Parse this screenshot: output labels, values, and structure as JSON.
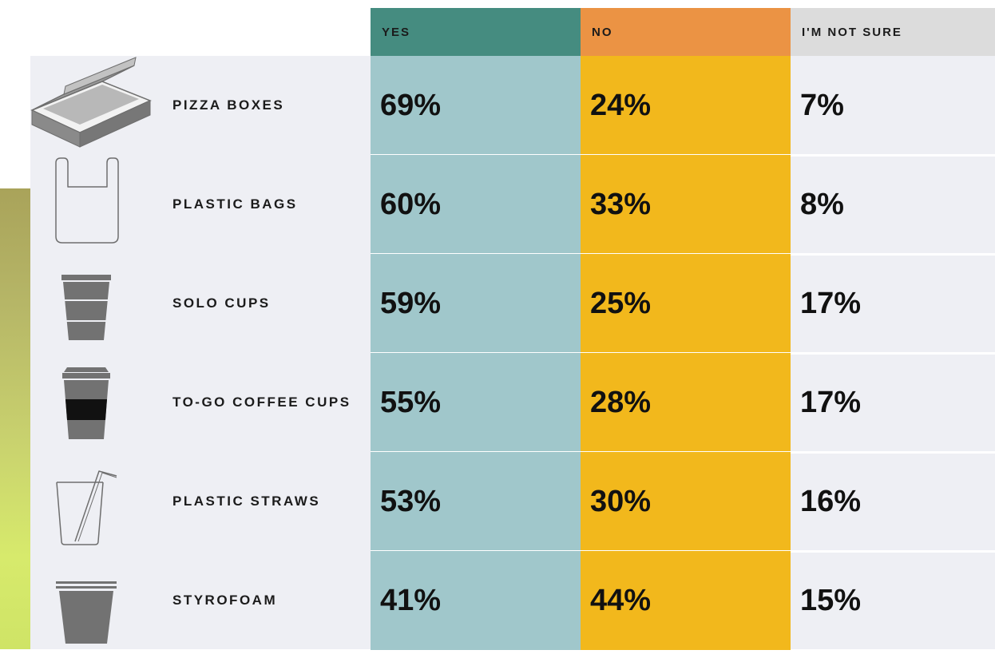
{
  "colors": {
    "yes_header": "#458c80",
    "no_header": "#eb9344",
    "unsure_header": "#dcdcdc",
    "yes_cell": "#a0c7cb",
    "no_cell": "#f2b81c",
    "panel": "#eeeff4",
    "icon": "#727272"
  },
  "chart_data": {
    "type": "table",
    "columns": [
      "YES",
      "NO",
      "I'M NOT SURE"
    ],
    "rows": [
      {
        "label": "PIZZA BOXES",
        "icon": "pizza-box-icon",
        "values": [
          "69%",
          "24%",
          "7%"
        ]
      },
      {
        "label": "PLASTIC BAGS",
        "icon": "plastic-bag-icon",
        "values": [
          "60%",
          "33%",
          "8%"
        ]
      },
      {
        "label": "SOLO CUPS",
        "icon": "solo-cup-icon",
        "values": [
          "59%",
          "25%",
          "17%"
        ]
      },
      {
        "label": "TO-GO COFFEE CUPS",
        "icon": "coffee-cup-icon",
        "values": [
          "55%",
          "28%",
          "17%"
        ]
      },
      {
        "label": "PLASTIC STRAWS",
        "icon": "straw-cup-icon",
        "values": [
          "53%",
          "30%",
          "16%"
        ]
      },
      {
        "label": "STYROFOAM",
        "icon": "styrofoam-cup-icon",
        "values": [
          "41%",
          "44%",
          "15%"
        ]
      }
    ]
  }
}
